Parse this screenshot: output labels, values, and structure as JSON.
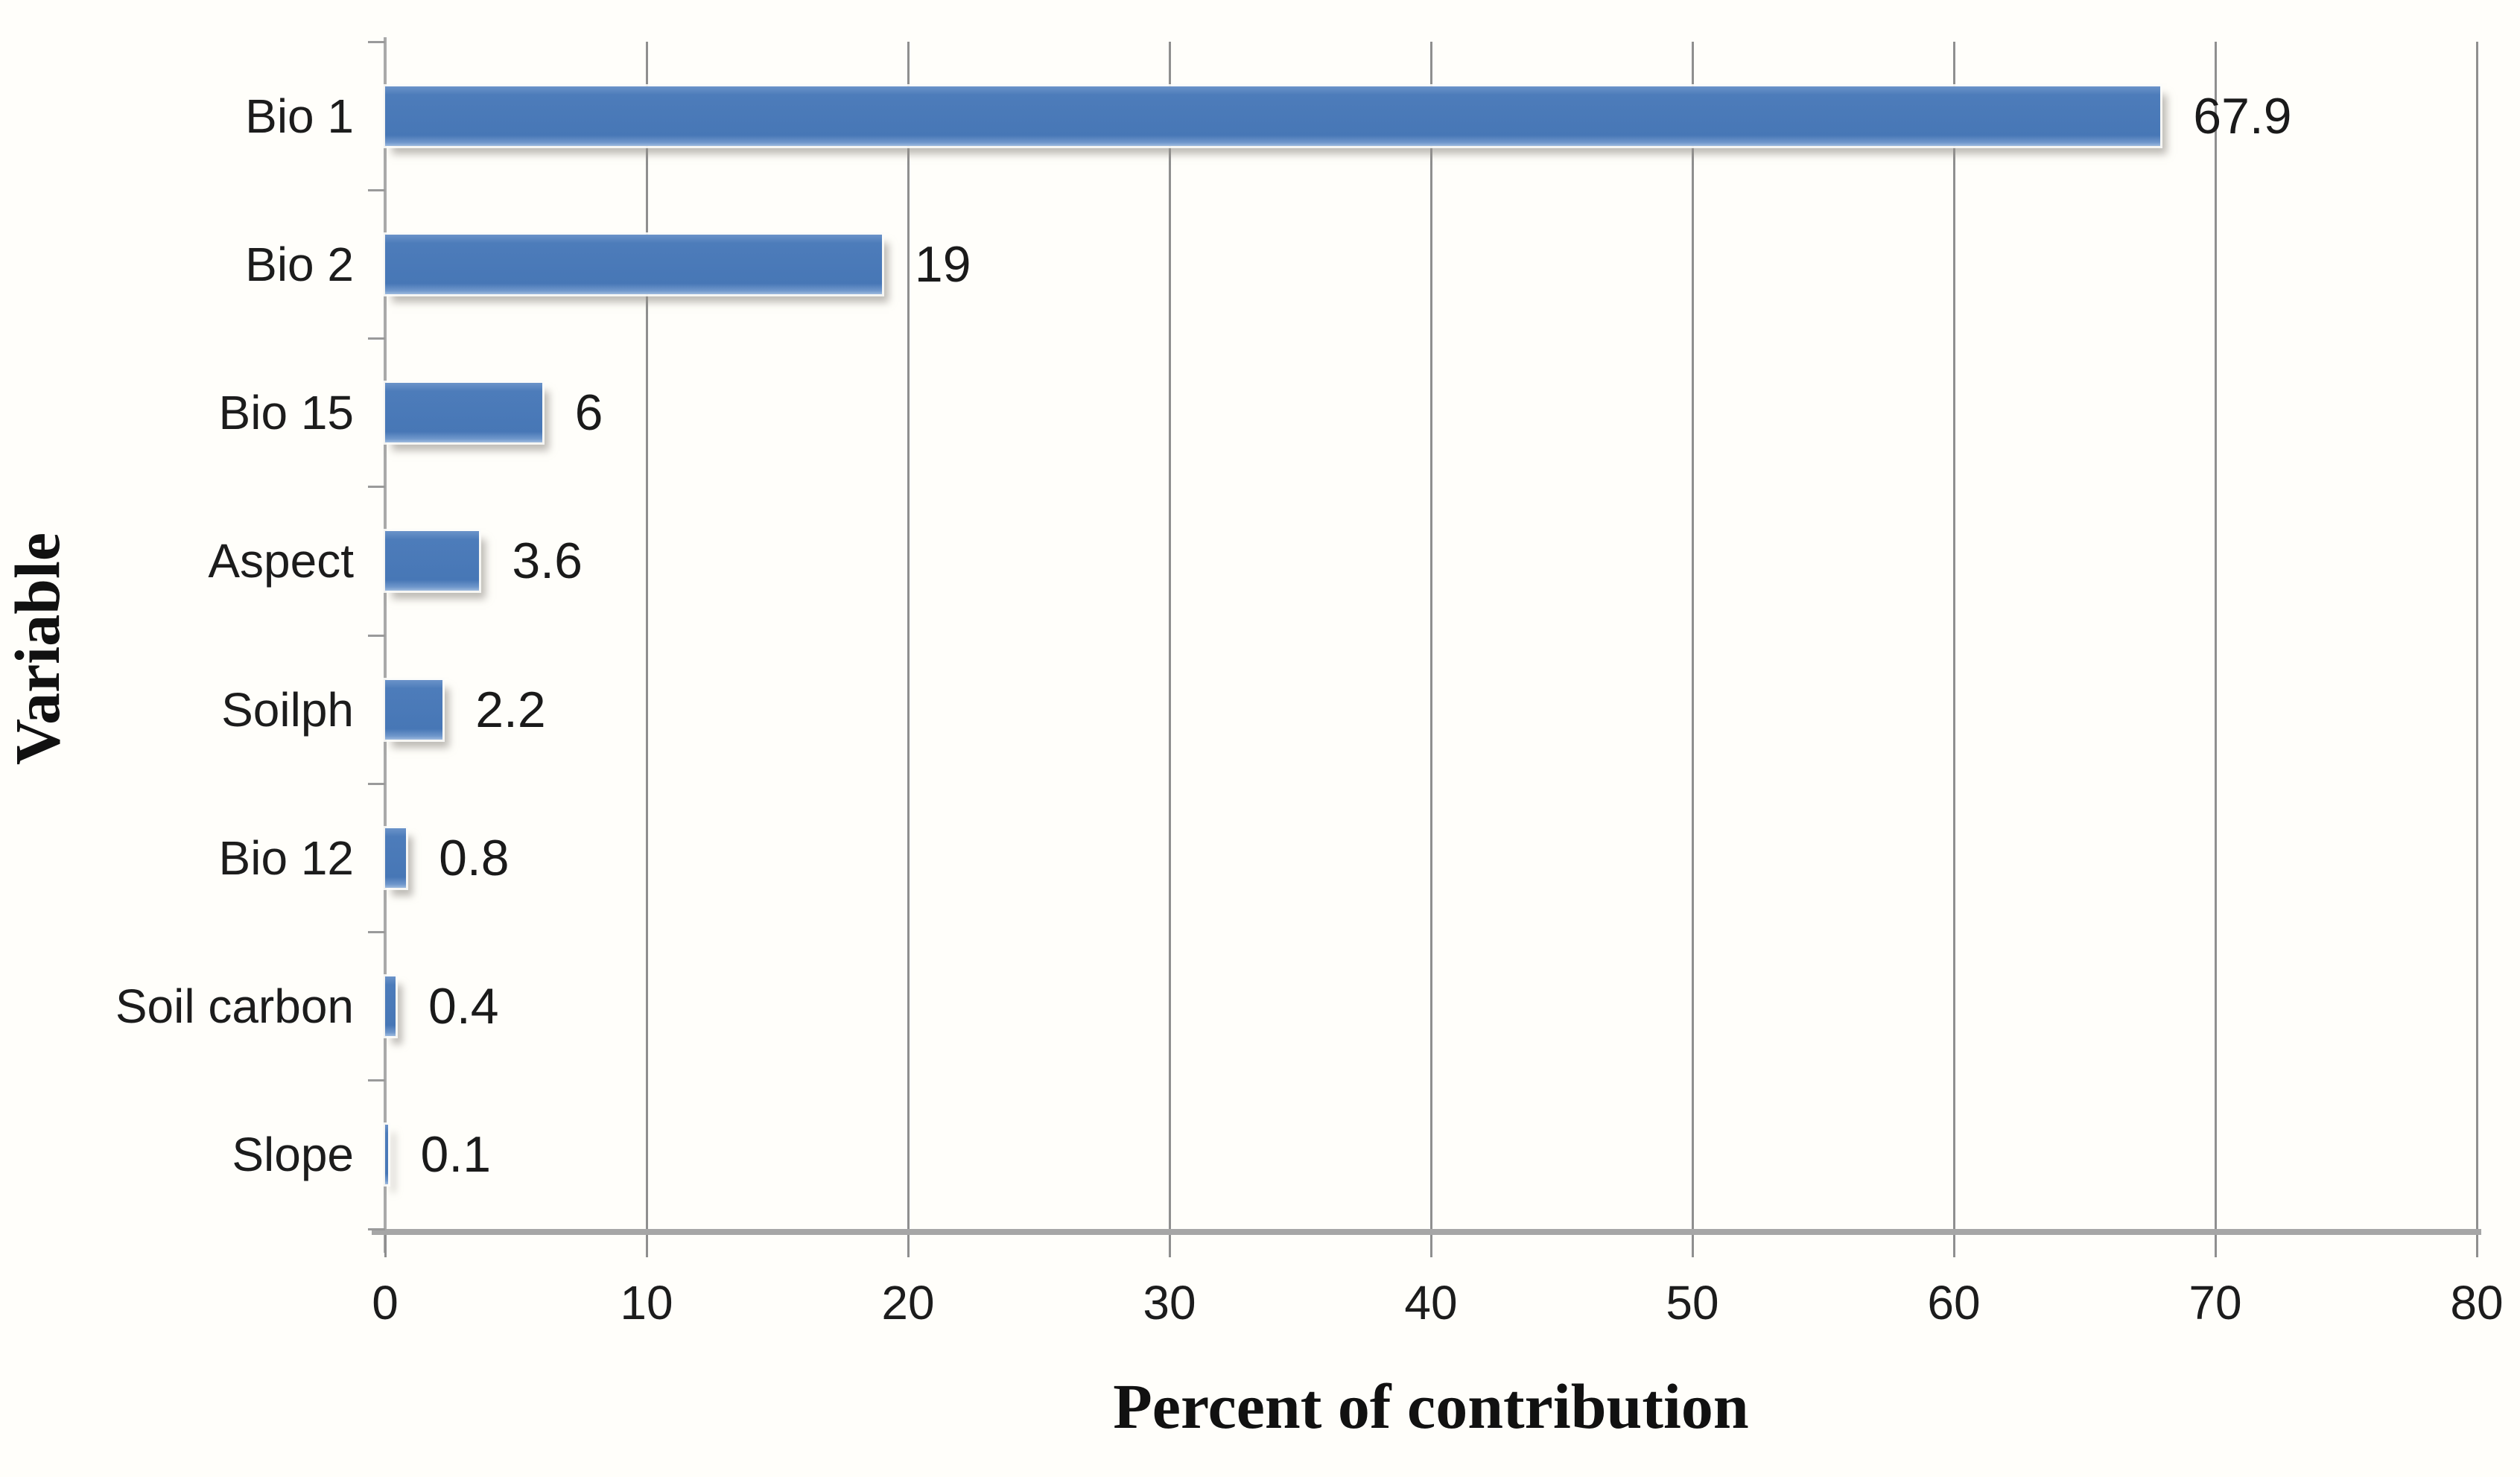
{
  "chart_data": {
    "type": "bar",
    "orientation": "horizontal",
    "title": "",
    "xlabel": "Percent of contribution",
    "ylabel": "Variable",
    "categories": [
      "Bio 1",
      "Bio 2",
      "Bio 15",
      "Aspect",
      "Soilph",
      "Bio 12",
      "Soil carbon",
      "Slope"
    ],
    "values": [
      67.9,
      19,
      6,
      3.6,
      2.2,
      0.8,
      0.4,
      0.1
    ],
    "value_labels": [
      "67.9",
      "19",
      "6",
      "3.6",
      "2.2",
      "0.8",
      "0.4",
      "0.1"
    ],
    "xticks": [
      0,
      10,
      20,
      30,
      40,
      50,
      60,
      70,
      80
    ],
    "xlim": [
      0,
      80
    ],
    "grid": "vertical-gridlines-every-10",
    "legend": "none",
    "bar_color": "#4a7ab9",
    "gridline_color": "#8f8f8f",
    "axis_line_color": "#a6a6a6",
    "label_color": "#1a1a1a",
    "background_color": "#fffefa"
  }
}
